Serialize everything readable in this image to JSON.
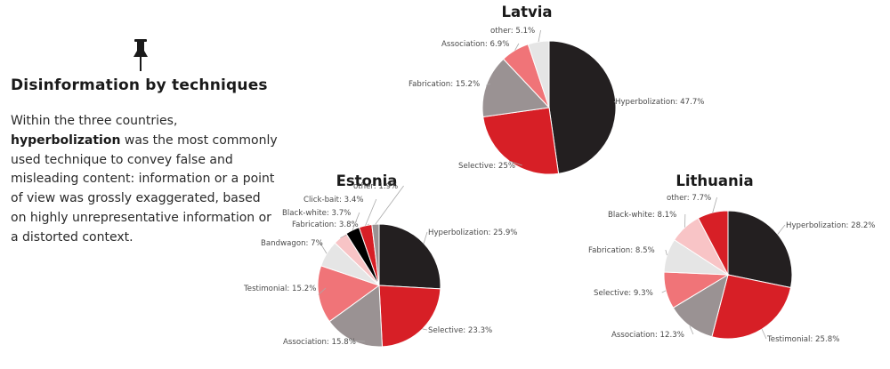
{
  "icons": {
    "pin": "pushpin-icon"
  },
  "article": {
    "heading": "Disinformation by techniques",
    "body_before": "Within the three countries, ",
    "body_bold": "hyperbolization",
    "body_after": " was the most commonly used technique to convey false and misleading content: information or a point of view was grossly exaggerated, based on highly unrepresentative information or a distorted context."
  },
  "colors": {
    "text": "#1a1a1a",
    "label": "#4a4a4a",
    "leader": "#aaaaaa"
  },
  "chart_data": [
    {
      "type": "pie",
      "title": "Latvia",
      "slices": [
        {
          "label": "Hyperbolization",
          "value": 47.7,
          "display": "Hyperbolization: 47.7%",
          "color": "#231f20"
        },
        {
          "label": "Selective",
          "value": 25,
          "display": "Selective: 25%",
          "color": "#d71f26"
        },
        {
          "label": "Fabrication",
          "value": 15.2,
          "display": "Fabrication: 15.2%",
          "color": "#9a9293"
        },
        {
          "label": "Association",
          "value": 6.9,
          "display": "Association: 6.9%",
          "color": "#f07478"
        },
        {
          "label": "other",
          "value": 5.1,
          "display": "other: 5.1%",
          "color": "#e5e5e5"
        }
      ]
    },
    {
      "type": "pie",
      "title": "Estonia",
      "slices": [
        {
          "label": "Hyperbolization",
          "value": 25.9,
          "display": "Hyperbolization: 25.9%",
          "color": "#231f20"
        },
        {
          "label": "Selective",
          "value": 23.3,
          "display": "Selective: 23.3%",
          "color": "#d71f26"
        },
        {
          "label": "Association",
          "value": 15.8,
          "display": "Association: 15.8%",
          "color": "#9a9293"
        },
        {
          "label": "Testimonial",
          "value": 15.2,
          "display": "Testimonial: 15.2%",
          "color": "#f07478"
        },
        {
          "label": "Bandwagon",
          "value": 7,
          "display": "Bandwagon: 7%",
          "color": "#e5e5e5"
        },
        {
          "label": "Fabrication",
          "value": 3.8,
          "display": "Fabrication: 3.8%",
          "color": "#f8c4c6"
        },
        {
          "label": "Black-white",
          "value": 3.7,
          "display": "Black-white: 3.7%",
          "color": "#000000"
        },
        {
          "label": "Click-bait",
          "value": 3.4,
          "display": "Click-bait: 3.4%",
          "color": "#d71f26"
        },
        {
          "label": "other",
          "value": 1.9,
          "display": "other: 1.9%",
          "color": "#9a9293"
        }
      ]
    },
    {
      "type": "pie",
      "title": "Lithuania",
      "slices": [
        {
          "label": "Hyperbolization",
          "value": 28.2,
          "display": "Hyperbolization: 28.2%",
          "color": "#231f20"
        },
        {
          "label": "Testimonial",
          "value": 25.8,
          "display": "Testimonial: 25.8%",
          "color": "#d71f26"
        },
        {
          "label": "Association",
          "value": 12.3,
          "display": "Association: 12.3%",
          "color": "#9a9293"
        },
        {
          "label": "Selective",
          "value": 9.3,
          "display": "Selective: 9.3%",
          "color": "#f07478"
        },
        {
          "label": "Fabrication",
          "value": 8.5,
          "display": "Fabrication: 8.5%",
          "color": "#e5e5e5"
        },
        {
          "label": "Black-white",
          "value": 8.1,
          "display": "Black-white: 8.1%",
          "color": "#f8c4c6"
        },
        {
          "label": "other",
          "value": 7.7,
          "display": "other: 7.7%",
          "color": "#d71f26"
        }
      ]
    }
  ]
}
